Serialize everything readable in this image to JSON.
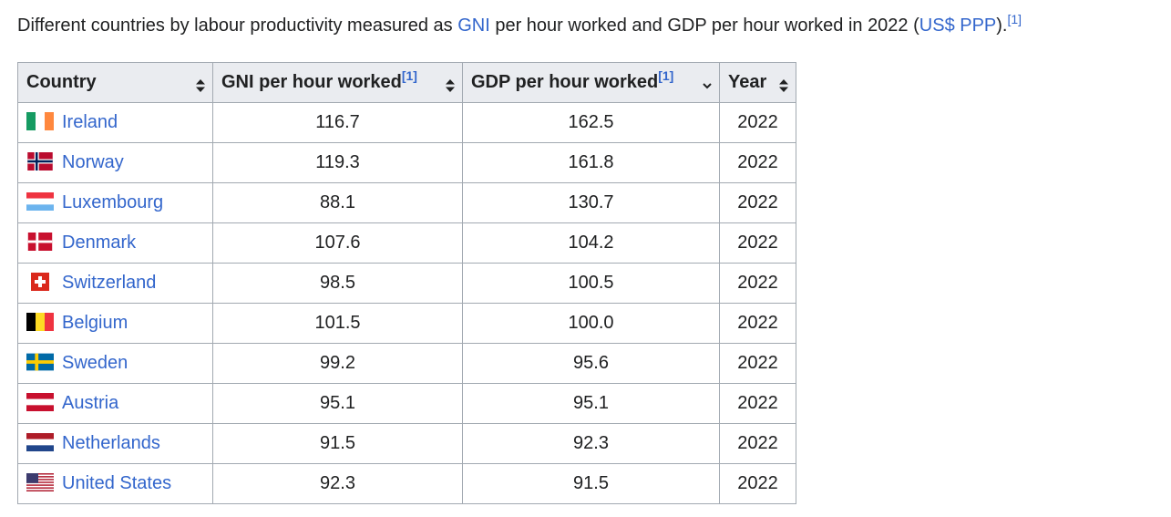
{
  "caption": {
    "text_before": "Different countries by labour productivity measured as ",
    "link_gni": "GNI",
    "text_middle": " per hour worked and GDP per hour worked in 2022 (",
    "link_currency": "US$ PPP",
    "text_after": ").",
    "ref": "[1]"
  },
  "table": {
    "headers": [
      {
        "label": "Country",
        "ref": "",
        "sort": "both-arrows-icon"
      },
      {
        "label": "GNI per hour worked",
        "ref": "[1]",
        "sort": "both-arrows-icon"
      },
      {
        "label": "GDP per hour worked",
        "ref": "[1]",
        "sort": "down-arrow-icon"
      },
      {
        "label": "Year",
        "ref": "",
        "sort": "both-arrows-icon"
      }
    ],
    "rows": [
      {
        "country": "Ireland",
        "flag": "ireland",
        "gni": "116.7",
        "gdp": "162.5",
        "year": "2022"
      },
      {
        "country": "Norway",
        "flag": "norway",
        "gni": "119.3",
        "gdp": "161.8",
        "year": "2022"
      },
      {
        "country": "Luxembourg",
        "flag": "luxembourg",
        "gni": "88.1",
        "gdp": "130.7",
        "year": "2022"
      },
      {
        "country": "Denmark",
        "flag": "denmark",
        "gni": "107.6",
        "gdp": "104.2",
        "year": "2022"
      },
      {
        "country": "Switzerland",
        "flag": "switzerland",
        "gni": "98.5",
        "gdp": "100.5",
        "year": "2022"
      },
      {
        "country": "Belgium",
        "flag": "belgium",
        "gni": "101.5",
        "gdp": "100.0",
        "year": "2022"
      },
      {
        "country": "Sweden",
        "flag": "sweden",
        "gni": "99.2",
        "gdp": "95.6",
        "year": "2022"
      },
      {
        "country": "Austria",
        "flag": "austria",
        "gni": "95.1",
        "gdp": "95.1",
        "year": "2022"
      },
      {
        "country": "Netherlands",
        "flag": "netherlands",
        "gni": "91.5",
        "gdp": "92.3",
        "year": "2022"
      },
      {
        "country": "United States",
        "flag": "united-states",
        "gni": "92.3",
        "gdp": "91.5",
        "year": "2022"
      }
    ]
  },
  "colors": {
    "link": "#3366cc",
    "header_bg": "#eaecf0",
    "border": "#a2a9b1",
    "text": "#202122"
  }
}
